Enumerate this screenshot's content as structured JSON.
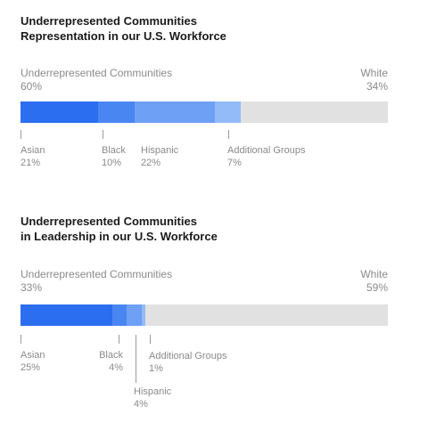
{
  "chart_data": [
    {
      "type": "bar",
      "title_lines": [
        "Underrepresented Communities",
        "Representation in our U.S. Workforce"
      ],
      "left_group": {
        "label": "Underrepresented Communities",
        "value": "60%"
      },
      "right_group": {
        "label": "White",
        "value": "34%"
      },
      "segments": [
        {
          "name": "Asian",
          "value": 21,
          "label": "21%",
          "color": "#2b6ef0"
        },
        {
          "name": "Black",
          "value": 10,
          "label": "10%",
          "color": "#4a86f2"
        },
        {
          "name": "Hispanic",
          "value": 22,
          "label": "22%",
          "color": "#6ea0f5"
        },
        {
          "name": "Additional Groups",
          "value": 7,
          "label": "7%",
          "color": "#93bbf8"
        }
      ],
      "remainder_color": "#e1e1e1",
      "xlim": [
        0,
        100
      ]
    },
    {
      "type": "bar",
      "title_lines": [
        "Underrepresented Communities",
        "in Leadership in our U.S. Workforce"
      ],
      "left_group": {
        "label": "Underrepresented Communities",
        "value": "33%"
      },
      "right_group": {
        "label": "White",
        "value": "59%"
      },
      "segments": [
        {
          "name": "Asian",
          "value": 25,
          "label": "25%",
          "color": "#2b6ef0"
        },
        {
          "name": "Black",
          "value": 4,
          "label": "4%",
          "color": "#4a86f2"
        },
        {
          "name": "Hispanic",
          "value": 4,
          "label": "4%",
          "color": "#6ea0f5"
        },
        {
          "name": "Additional Groups",
          "value": 1,
          "label": "1%",
          "color": "#93bbf8"
        }
      ],
      "remainder_color": "#e1e1e1",
      "xlim": [
        0,
        100
      ]
    }
  ]
}
